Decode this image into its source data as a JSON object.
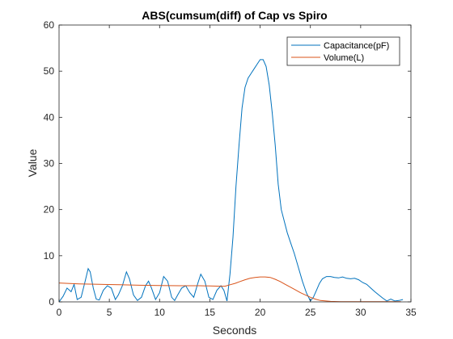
{
  "chart_data": {
    "type": "line",
    "title": "ABS(cumsum(diff) of Cap vs Spiro",
    "xlabel": "Seconds",
    "ylabel": "Value",
    "xlim": [
      0,
      35
    ],
    "ylim": [
      0,
      60
    ],
    "xticks": [
      0,
      5,
      10,
      15,
      20,
      25,
      30,
      35
    ],
    "yticks": [
      0,
      10,
      20,
      30,
      40,
      50,
      60
    ],
    "grid": false,
    "legend_position": "top-right",
    "series": [
      {
        "name": "Capacitance(pF)",
        "color": "#0072BD",
        "x": [
          0,
          0.4,
          0.8,
          1.2,
          1.5,
          1.8,
          2.2,
          2.6,
          2.9,
          3.1,
          3.4,
          3.7,
          4.0,
          4.4,
          4.8,
          5.2,
          5.6,
          5.9,
          6.3,
          6.7,
          7.0,
          7.4,
          7.8,
          8.2,
          8.6,
          8.9,
          9.2,
          9.6,
          10.0,
          10.4,
          10.8,
          11.2,
          11.5,
          11.8,
          12.2,
          12.6,
          13.0,
          13.4,
          13.8,
          14.1,
          14.5,
          14.9,
          15.3,
          15.7,
          16.1,
          16.4,
          16.7,
          17.0,
          17.3,
          17.6,
          17.9,
          18.2,
          18.5,
          18.8,
          19.1,
          19.4,
          19.7,
          20.0,
          20.3,
          20.6,
          20.9,
          21.2,
          21.5,
          21.8,
          22.1,
          22.4,
          22.7,
          23.0,
          23.4,
          23.8,
          24.2,
          24.6,
          25.0,
          25.3,
          25.6,
          25.9,
          26.2,
          26.6,
          27.0,
          27.4,
          27.8,
          28.2,
          28.6,
          29.0,
          29.4,
          29.8,
          30.2,
          30.6,
          31.0,
          31.4,
          31.8,
          32.2,
          32.6,
          33.0,
          33.4,
          33.8,
          34.2
        ],
        "y": [
          0,
          1.2,
          3.0,
          2.2,
          3.8,
          0.5,
          1.0,
          4.5,
          7.2,
          6.5,
          3.0,
          0.6,
          0.4,
          2.5,
          3.5,
          3.0,
          0.5,
          1.5,
          3.5,
          6.5,
          5.0,
          1.5,
          0.3,
          1.0,
          3.5,
          4.5,
          3.0,
          0.5,
          2.0,
          5.5,
          4.5,
          1.0,
          0.3,
          1.5,
          3.0,
          3.5,
          2.0,
          1.0,
          4.0,
          6.0,
          4.5,
          1.0,
          0.5,
          2.5,
          3.5,
          2.5,
          0.2,
          6.0,
          14.0,
          25.0,
          34.0,
          42.0,
          46.5,
          48.5,
          49.5,
          50.5,
          51.5,
          52.5,
          52.5,
          51.0,
          47.0,
          41.0,
          34.0,
          25.5,
          20.0,
          17.5,
          15.0,
          13.0,
          10.5,
          7.5,
          4.5,
          2.0,
          0.2,
          1.0,
          2.5,
          4.0,
          5.0,
          5.5,
          5.5,
          5.3,
          5.2,
          5.4,
          5.1,
          5.0,
          5.1,
          4.8,
          4.2,
          3.8,
          3.0,
          2.2,
          1.5,
          0.8,
          0.2,
          0.6,
          0.2,
          0.3,
          0.5
        ]
      },
      {
        "name": "Volume(L)",
        "color": "#D95319",
        "x": [
          0,
          2,
          4,
          6,
          8,
          10,
          12,
          14,
          15,
          16,
          16.5,
          17,
          17.5,
          18,
          18.5,
          19,
          19.5,
          20,
          20.5,
          21,
          21.5,
          22,
          22.5,
          23,
          23.5,
          24,
          24.5,
          25,
          25.5,
          26,
          27,
          28,
          29,
          30,
          31,
          32,
          33,
          34
        ],
        "y": [
          4.1,
          3.9,
          3.8,
          3.7,
          3.6,
          3.55,
          3.5,
          3.5,
          3.45,
          3.4,
          3.4,
          3.7,
          4.0,
          4.4,
          4.8,
          5.1,
          5.3,
          5.4,
          5.4,
          5.3,
          4.9,
          4.4,
          3.8,
          3.2,
          2.6,
          2.0,
          1.5,
          1.0,
          0.6,
          0.3,
          0.1,
          0.05,
          0.05,
          0.05,
          0.05,
          0.05,
          0.05,
          0.05
        ]
      }
    ]
  }
}
